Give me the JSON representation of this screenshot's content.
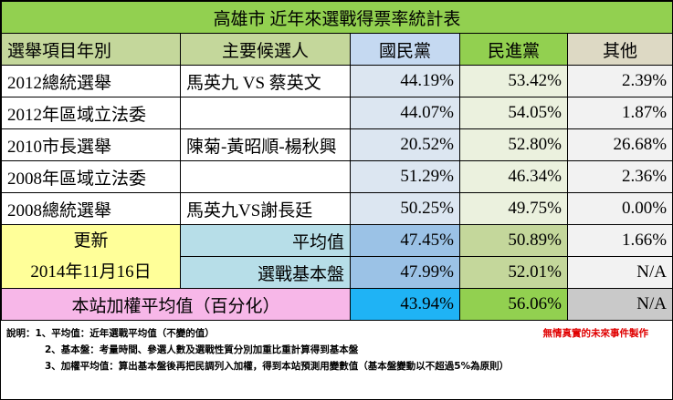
{
  "title": "高雄市 近年來選戰得票率統計表",
  "headers": {
    "item": "選舉項目年別",
    "candidates": "主要候選人",
    "kmt": "國民黨",
    "dpp": "民進黨",
    "other": "其他"
  },
  "rows": [
    {
      "item": "2012總統選舉",
      "candidates": "馬英九 VS 蔡英文",
      "kmt": "44.19%",
      "dpp": "53.42%",
      "other": "2.39%"
    },
    {
      "item": "2012年區域立法委",
      "candidates": "",
      "kmt": "44.07%",
      "dpp": "54.05%",
      "other": "1.87%"
    },
    {
      "item": "2010市長選舉",
      "candidates": "陳菊-黃昭順-楊秋興",
      "kmt": "20.52%",
      "dpp": "52.80%",
      "other": "26.68%"
    },
    {
      "item": "2008年區域立法委",
      "candidates": "",
      "kmt": "51.29%",
      "dpp": "46.34%",
      "other": "2.36%"
    },
    {
      "item": "2008總統選舉",
      "candidates": "馬英九VS謝長廷",
      "kmt": "50.25%",
      "dpp": "49.75%",
      "other": "0.00%"
    }
  ],
  "update": {
    "label": "更新",
    "date": "2014年11月16日"
  },
  "average": {
    "label": "平均值",
    "kmt": "47.45%",
    "dpp": "50.89%",
    "other": "1.66%"
  },
  "base": {
    "label": "選戰基本盤",
    "kmt": "47.99%",
    "dpp": "52.01%",
    "other": "N/A"
  },
  "weighted": {
    "label": "本站加權平均值（百分化）",
    "kmt": "43.94%",
    "dpp": "56.06%",
    "other": "N/A"
  },
  "notes": {
    "line1": "說明：1、平均值：近年選戰平均值（不變的值）",
    "line2": "2、基本盤：考量時間、參選人數及選戰性質分別加重比重計算得到基本盤",
    "line3": "3、加權平均值：算出基本盤後再把民調列入加權，得到本站預測用變數值（基本盤變動以不超過5%為原則）",
    "credit": "無情真實的未來事件製作"
  }
}
